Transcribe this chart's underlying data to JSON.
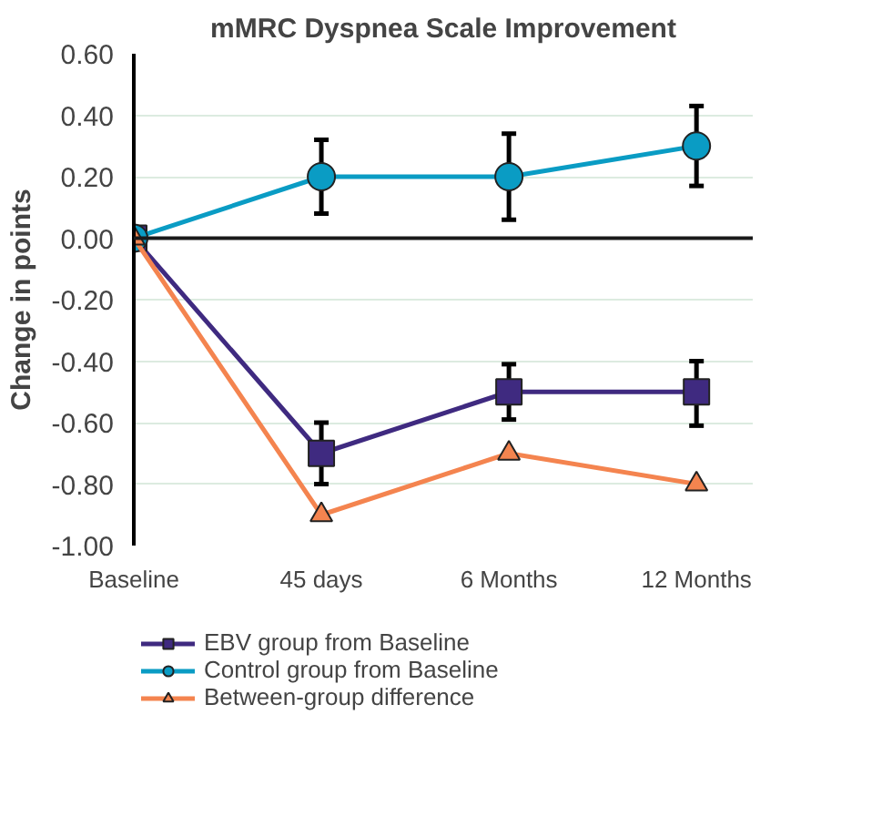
{
  "chart_data": {
    "type": "line",
    "title": "mMRC Dyspnea Scale Improvement",
    "ylabel": "Change in points",
    "categories": [
      "Baseline",
      "45 days",
      "6 Months",
      "12 Months"
    ],
    "series": [
      {
        "name": "EBV group from Baseline",
        "color": "#3f2a80",
        "marker": "square",
        "values": [
          0,
          -0.7,
          -0.5,
          -0.5
        ],
        "errors": [
          null,
          0.1,
          [
            -0.59,
            -0.41
          ],
          [
            -0.61,
            -0.4
          ]
        ]
      },
      {
        "name": "Control group from Baseline",
        "color": "#0a9cc4",
        "marker": "circle",
        "values": [
          0,
          0.2,
          0.2,
          0.3
        ],
        "errors": [
          null,
          0.12,
          [
            0.06,
            0.34
          ],
          [
            0.17,
            0.43
          ]
        ]
      },
      {
        "name": "Between-group difference",
        "color": "#f4844f",
        "marker": "triangle",
        "values": [
          0,
          -0.9,
          -0.7,
          -0.8
        ]
      }
    ],
    "ylim": [
      -1.0,
      0.6
    ],
    "yticks": [
      {
        "value": 0.6,
        "label": "0.60"
      },
      {
        "value": 0.4,
        "label": "0.40"
      },
      {
        "value": 0.2,
        "label": "0.20"
      },
      {
        "value": 0,
        "label": "0.00"
      },
      {
        "value": -0.2,
        "label": "-0.20"
      },
      {
        "value": -0.4,
        "label": "-0.40"
      },
      {
        "value": -0.6,
        "label": "-0.60"
      },
      {
        "value": -0.8,
        "label": "-0.80"
      },
      {
        "value": -1.0,
        "label": "-1.00"
      }
    ],
    "ref_lines": [
      {
        "axis": "y",
        "value": 0,
        "color": "#1a1a1a"
      }
    ],
    "grid": "y",
    "legend": "bottom",
    "line_style": "solid"
  }
}
